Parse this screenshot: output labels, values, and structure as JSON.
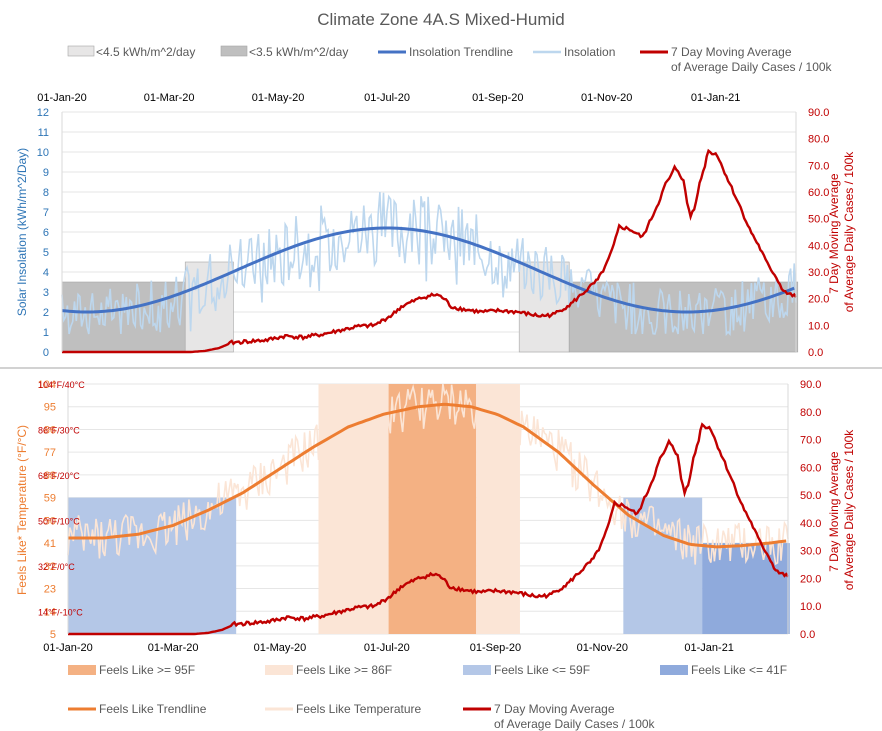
{
  "title": "Climate Zone 4A.S Mixed-Humid",
  "colors": {
    "insolation_trend": "#4472c4",
    "insolation": "#bdd7ee",
    "cases": "#c00000",
    "dark_gray": "#bfbfbf",
    "light_gray": "#e7e6e6",
    "feels_trend": "#ed7d31",
    "feels_temp": "#fbe5d6",
    "orange95": "#f4b183",
    "orange86": "#fbe5d6",
    "blue59": "#b4c7e7",
    "blue41": "#8faadc",
    "left_axis_top": "#2e75b6",
    "left_axis_bottom": "#ed7d31"
  },
  "chart_data": [
    {
      "type": "line",
      "name": "insolation",
      "title": "Climate Zone 4A.S Mixed-Humid",
      "x_range": [
        "2020-01-01",
        "2021-02-15"
      ],
      "x_tick_labels": [
        "01-Jan-20",
        "01-Mar-20",
        "01-May-20",
        "01-Jul-20",
        "01-Sep-20",
        "01-Nov-20",
        "01-Jan-21"
      ],
      "ylabel_left": "Solar Insolation (kWh/m^2/Day)",
      "ylim_left": [
        0,
        12
      ],
      "y_ticks_left": [
        "0",
        "1",
        "2",
        "3",
        "4",
        "5",
        "6",
        "7",
        "8",
        "9",
        "10",
        "11",
        "12"
      ],
      "ylabel_right": "7 Day Moving Average of Average Daily Cases / 100k",
      "ylim_right": [
        0,
        90
      ],
      "y_ticks_right": [
        "0.0",
        "10.0",
        "20.0",
        "30.0",
        "40.0",
        "50.0",
        "60.0",
        "70.0",
        "80.0",
        "90.0"
      ],
      "legend": [
        {
          "label": "<4.5 kWh/m^2/day",
          "kind": "area"
        },
        {
          "label": "<3.5 kWh/m^2/day",
          "kind": "area"
        },
        {
          "label": "Insolation Trendline",
          "kind": "line"
        },
        {
          "label": "Insolation",
          "kind": "line"
        },
        {
          "label": "7 Day Moving Average\nof Average Daily Cases / 100k",
          "kind": "line"
        }
      ],
      "shaded_periods": [
        {
          "label": "<3.5 kWh/m^2/day",
          "start_day": 0,
          "end_day": 69
        },
        {
          "label": "<4.5 kWh/m^2/day",
          "start_day": 69,
          "end_day": 96
        },
        {
          "label": "<4.5 kWh/m^2/day",
          "start_day": 256,
          "end_day": 284
        },
        {
          "label": "<3.5 kWh/m^2/day",
          "start_day": 284,
          "end_day": 412
        }
      ],
      "series": [
        {
          "name": "Insolation Trendline",
          "axis": "left",
          "function": "sinusoid",
          "min": 2.0,
          "max": 6.2,
          "peak_day": 182,
          "min_day": 350
        },
        {
          "name": "Insolation",
          "axis": "left",
          "note": "daily values fluctuating around trendline, roughly 1 to 8"
        },
        {
          "name": "7 Day Moving Average of Average Daily Cases / 100k",
          "axis": "right",
          "points": [
            [
              0,
              0
            ],
            [
              72,
              0
            ],
            [
              80,
              0.4
            ],
            [
              88,
              1.5
            ],
            [
              95,
              3.5
            ],
            [
              105,
              4
            ],
            [
              115,
              4.5
            ],
            [
              125,
              6
            ],
            [
              135,
              5.5
            ],
            [
              145,
              6.5
            ],
            [
              155,
              8
            ],
            [
              165,
              9.5
            ],
            [
              175,
              10
            ],
            [
              185,
              14
            ],
            [
              190,
              17
            ],
            [
              195,
              18.5
            ],
            [
              200,
              20
            ],
            [
              205,
              21
            ],
            [
              210,
              21.5
            ],
            [
              214,
              20
            ],
            [
              218,
              17
            ],
            [
              225,
              16
            ],
            [
              235,
              15
            ],
            [
              245,
              15.5
            ],
            [
              255,
              15
            ],
            [
              263,
              14
            ],
            [
              268,
              13.5
            ],
            [
              275,
              14
            ],
            [
              280,
              16
            ],
            [
              285,
              18
            ],
            [
              290,
              21
            ],
            [
              295,
              24
            ],
            [
              300,
              27
            ],
            [
              305,
              33
            ],
            [
              309,
              40
            ],
            [
              312,
              47
            ],
            [
              318,
              46
            ],
            [
              325,
              43
            ],
            [
              330,
              50
            ],
            [
              334,
              56
            ],
            [
              338,
              63
            ],
            [
              341,
              66
            ],
            [
              343,
              69
            ],
            [
              345,
              68
            ],
            [
              348,
              64
            ],
            [
              350,
              56
            ],
            [
              352,
              51
            ],
            [
              354,
              54
            ],
            [
              357,
              63
            ],
            [
              360,
              70
            ],
            [
              362,
              76
            ],
            [
              364,
              74
            ],
            [
              366,
              75
            ],
            [
              368,
              72
            ],
            [
              372,
              66
            ],
            [
              376,
              60
            ],
            [
              380,
              54
            ],
            [
              385,
              46
            ],
            [
              390,
              40
            ],
            [
              395,
              33
            ],
            [
              400,
              28
            ],
            [
              403,
              24
            ],
            [
              406,
              22
            ],
            [
              410,
              21
            ],
            [
              412,
              19.5
            ]
          ]
        }
      ]
    },
    {
      "type": "line",
      "name": "feels_like",
      "x_range": [
        "2020-01-01",
        "2021-02-15"
      ],
      "x_tick_labels": [
        "01-Jan-20",
        "01-Mar-20",
        "01-May-20",
        "01-Jul-20",
        "01-Sep-20",
        "01-Nov-20",
        "01-Jan-21"
      ],
      "ylabel_left": "Feels Like* Temperature (°F/°C)",
      "ylim_left": [
        5,
        104
      ],
      "y_ticks_left": [
        "5",
        "14",
        "23",
        "32",
        "41",
        "50",
        "59",
        "68",
        "77",
        "86",
        "95",
        "104"
      ],
      "celsius_labels": [
        {
          "f": 14,
          "label": "14°F/-10°C"
        },
        {
          "f": 32,
          "label": "32°F/0°C"
        },
        {
          "f": 50,
          "label": "50°F/10°C"
        },
        {
          "f": 68,
          "label": "68°F/20°C"
        },
        {
          "f": 86,
          "label": "86°F/30°C"
        },
        {
          "f": 104,
          "label": "104°F/40°C"
        }
      ],
      "ylabel_right": "7 Day Moving Average of Average Daily Cases / 100k",
      "ylim_right": [
        0,
        90
      ],
      "y_ticks_right": [
        "0.0",
        "10.0",
        "20.0",
        "30.0",
        "40.0",
        "50.0",
        "60.0",
        "70.0",
        "80.0",
        "90.0"
      ],
      "legend": [
        {
          "label": "Feels Like >= 95F",
          "kind": "area"
        },
        {
          "label": "Feels Like >= 86F",
          "kind": "area"
        },
        {
          "label": "Feels Like <= 59F",
          "kind": "area"
        },
        {
          "label": "Feels Like <= 41F",
          "kind": "area"
        },
        {
          "label": "Feels Like Trendline",
          "kind": "line"
        },
        {
          "label": "Feels Like Temperature",
          "kind": "line"
        },
        {
          "label": "7 Day Moving Average\nof Average Daily Cases / 100k",
          "kind": "line"
        }
      ],
      "shaded_periods": [
        {
          "label": "Feels Like <= 59F",
          "start_day": 0,
          "end_day": 96,
          "ymax_f": 59
        },
        {
          "label": "Feels Like >= 86F",
          "start_day": 143,
          "end_day": 183,
          "ymax_f": 104
        },
        {
          "label": "Feels Like >= 95F",
          "start_day": 183,
          "end_day": 233,
          "ymax_f": 104
        },
        {
          "label": "Feels Like >= 86F",
          "start_day": 233,
          "end_day": 258,
          "ymax_f": 104
        },
        {
          "label": "Feels Like <= 59F",
          "start_day": 317,
          "end_day": 362,
          "ymax_f": 59
        },
        {
          "label": "Feels Like <= 41F",
          "start_day": 362,
          "end_day": 412,
          "ymax_f": 41
        }
      ],
      "series": [
        {
          "name": "Feels Like Trendline",
          "axis": "left",
          "points": [
            [
              0,
              43
            ],
            [
              20,
              43
            ],
            [
              40,
              44.5
            ],
            [
              60,
              48
            ],
            [
              80,
              54
            ],
            [
              100,
              61
            ],
            [
              120,
              70
            ],
            [
              140,
              79
            ],
            [
              160,
              87
            ],
            [
              180,
              92
            ],
            [
              200,
              95
            ],
            [
              215,
              96
            ],
            [
              230,
              95
            ],
            [
              245,
              92
            ],
            [
              260,
              87
            ],
            [
              280,
              77
            ],
            [
              300,
              64
            ],
            [
              320,
              52
            ],
            [
              340,
              44
            ],
            [
              355,
              40.5
            ],
            [
              370,
              39.5
            ],
            [
              385,
              40
            ],
            [
              400,
              41
            ],
            [
              412,
              42
            ]
          ]
        },
        {
          "name": "Feels Like Temperature",
          "axis": "left",
          "note": "daily values fluctuating around trendline"
        },
        {
          "name": "7 Day Moving Average of Average Daily Cases / 100k",
          "axis": "right",
          "same_as": "insolation chart cases series"
        }
      ]
    }
  ]
}
